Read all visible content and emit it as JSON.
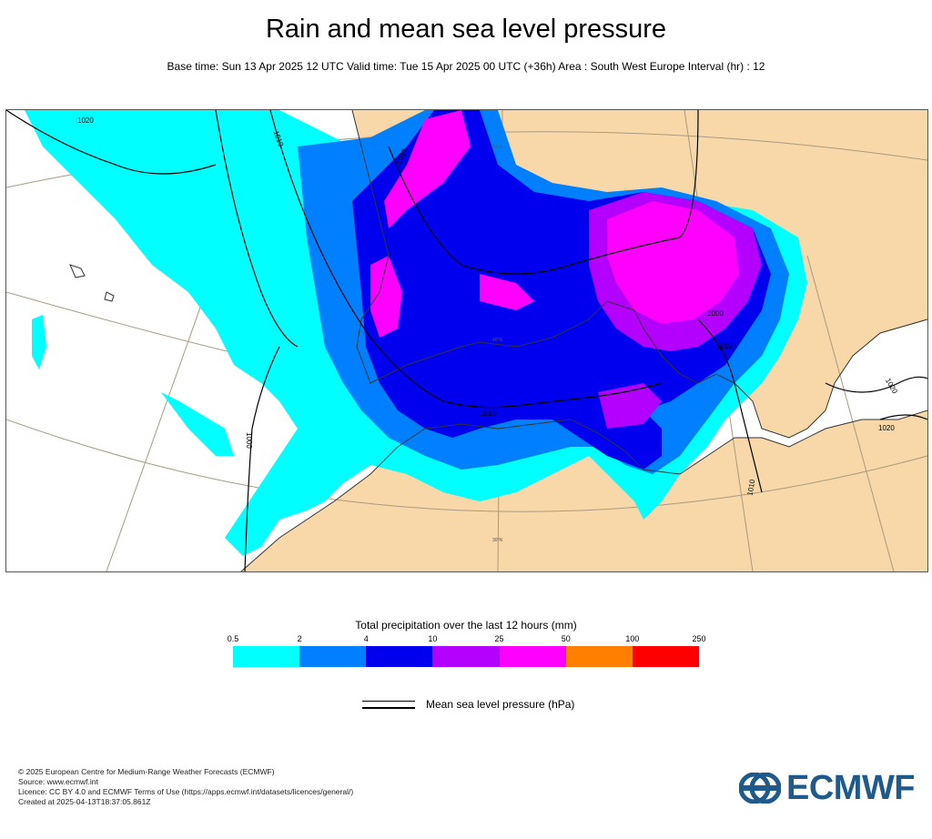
{
  "header": {
    "title": "Rain and mean sea level pressure",
    "subtitle": "Base time: Sun 13 Apr 2025 12 UTC Valid time: Tue 15 Apr 2025 00 UTC (+36h) Area : South West Europe Interval (hr) : 12"
  },
  "map": {
    "isobar_labels": [
      "1020",
      "1010",
      "1000",
      "1010",
      "1000",
      "1010",
      "1020",
      "1010",
      "1020",
      "1000"
    ],
    "graticule_labels": [
      "30°N",
      "40°N",
      "50°N"
    ],
    "colors": {
      "land": "#f8d8a8",
      "sea": "#ffffff",
      "isobar": "#000000",
      "coast": "#333333",
      "graticule": "#a89a80"
    }
  },
  "legend": {
    "title": "Total precipitation over the last 12 hours (mm)",
    "ticks": [
      "0.5",
      "2",
      "4",
      "10",
      "25",
      "50",
      "100",
      "250"
    ],
    "colors": [
      "#00ffff",
      "#0080ff",
      "#0000ee",
      "#b400ff",
      "#ff00ff",
      "#ff8000",
      "#ff0000"
    ],
    "mslp_label": "Mean sea level pressure (hPa)"
  },
  "footer": {
    "lines": [
      "© 2025 European Centre for Medium-Range Weather Forecasts (ECMWF)",
      "Source: www.ecmwf.int",
      "Licence: CC BY 4.0 and ECMWF Terms of Use (https://apps.ecmwf.int/datasets/licences/general/)",
      "Created at 2025-04-13T18:37:05.861Z"
    ],
    "logo_text": "ECMWF",
    "logo_color": "#1f5a8c"
  }
}
